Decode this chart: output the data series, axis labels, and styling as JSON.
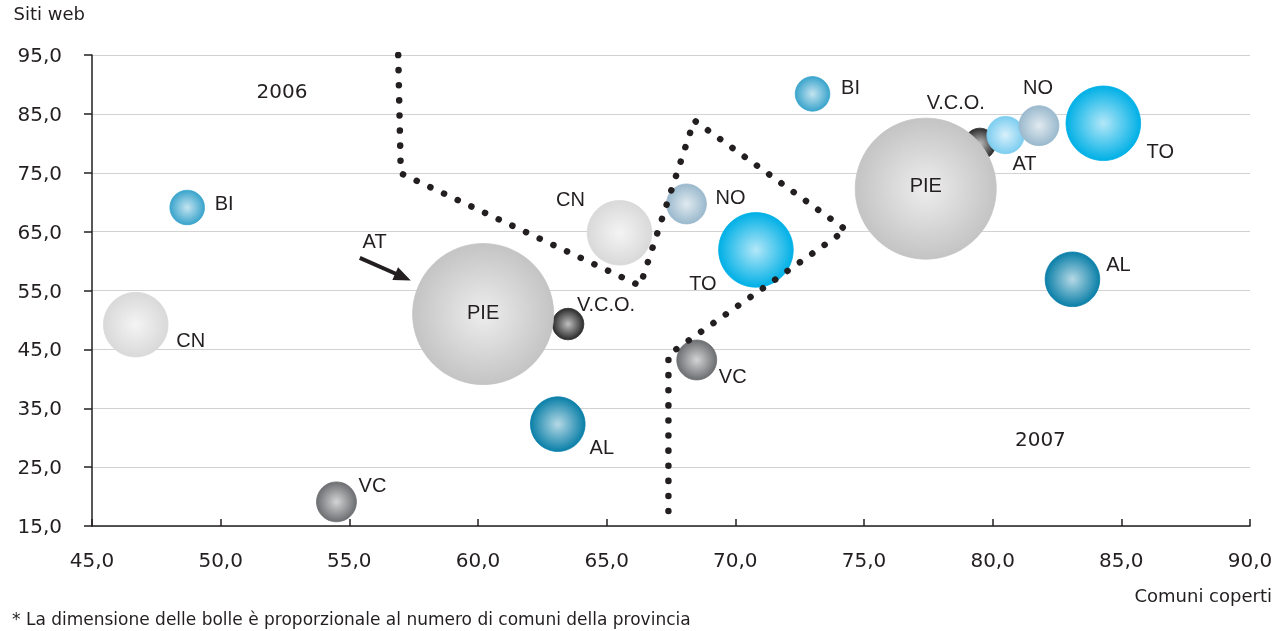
{
  "chart_data": {
    "type": "bubble",
    "xlabel": "Comuni coperti",
    "ylabel": "Siti web",
    "xlim": [
      45,
      90
    ],
    "xticks": [
      {
        "value": 45,
        "label": "45,0"
      },
      {
        "value": 50,
        "label": "50,0"
      },
      {
        "value": 55,
        "label": "55,0"
      },
      {
        "value": 60,
        "label": "60,0"
      },
      {
        "value": 65,
        "label": "65,0"
      },
      {
        "value": 70,
        "label": "70,0"
      },
      {
        "value": 75,
        "label": "75,0"
      },
      {
        "value": 80,
        "label": "80,0"
      },
      {
        "value": 85,
        "label": "85,0"
      },
      {
        "value": 90,
        "label": "90,0"
      }
    ],
    "ylim": [
      15,
      95
    ],
    "yticks": [
      {
        "value": 15,
        "label": "15,0"
      },
      {
        "value": 25,
        "label": "25,0"
      },
      {
        "value": 35,
        "label": "35,0"
      },
      {
        "value": 45,
        "label": "45,0"
      },
      {
        "value": 55,
        "label": "55,0"
      },
      {
        "value": 65,
        "label": "65,0"
      },
      {
        "value": 75,
        "label": "75,0"
      },
      {
        "value": 85,
        "label": "85,0"
      },
      {
        "value": 95,
        "label": "95,0"
      }
    ],
    "grid": "y",
    "series": [
      {
        "name": "V.C.O.",
        "color": "#2b2b2b",
        "x": [
          63.5,
          79.5
        ],
        "values": [
          49.3,
          79.9
        ],
        "sizes": [
          0.05,
          0.05
        ]
      },
      {
        "name": "PIE",
        "color": "#c4c4c4",
        "x": [
          60.2,
          77.4
        ],
        "values": [
          51.0,
          72.3
        ],
        "sizes": [
          1,
          1
        ]
      },
      {
        "name": "CN",
        "color": "#d9d9d9",
        "x": [
          46.7,
          65.5
        ],
        "values": [
          49.2,
          64.8
        ],
        "sizes": [
          0.21,
          0.21
        ]
      },
      {
        "name": "TO",
        "color": "#00b0e6",
        "x": [
          70.8,
          84.3
        ],
        "values": [
          61.9,
          83.4
        ],
        "sizes": [
          0.28,
          0.28
        ]
      },
      {
        "name": "AL",
        "color": "#0a7fa8",
        "x": [
          63.1,
          83.1
        ],
        "values": [
          32.3,
          56.9
        ],
        "sizes": [
          0.15,
          0.15
        ]
      },
      {
        "name": "AT",
        "color": "#7ccdf0",
        "x": [
          null,
          80.5
        ],
        "values": [
          null,
          81.4
        ],
        "sizes": [
          null,
          0.07
        ]
      },
      {
        "name": "NO",
        "color": "#9ab9cd",
        "x": [
          68.1,
          81.8
        ],
        "values": [
          69.7,
          83.0
        ],
        "sizes": [
          0.08,
          0.08
        ]
      },
      {
        "name": "VC",
        "color": "#6d6e71",
        "x": [
          54.5,
          68.5
        ],
        "values": [
          19.1,
          43.2
        ],
        "sizes": [
          0.08,
          0.08
        ]
      },
      {
        "name": "BI",
        "color": "#3aa4cc",
        "x": [
          48.7,
          73.0
        ],
        "values": [
          69.1,
          88.4
        ],
        "sizes": [
          0.06,
          0.06
        ]
      },
      {
        "type": "line",
        "color": "#231f20",
        "line_style": "dotted",
        "x": [
          56.9,
          57.0,
          66.3,
          68.4,
          74.3,
          67.4,
          67.4
        ],
        "values": [
          95,
          74.9,
          55.8,
          83.9,
          65.3,
          44.1,
          15
        ]
      }
    ],
    "annotations": [
      "2006",
      "2007",
      "AT",
      "* La dimensione delle bolle è proporzionale al numero di comuni della provincia"
    ]
  }
}
